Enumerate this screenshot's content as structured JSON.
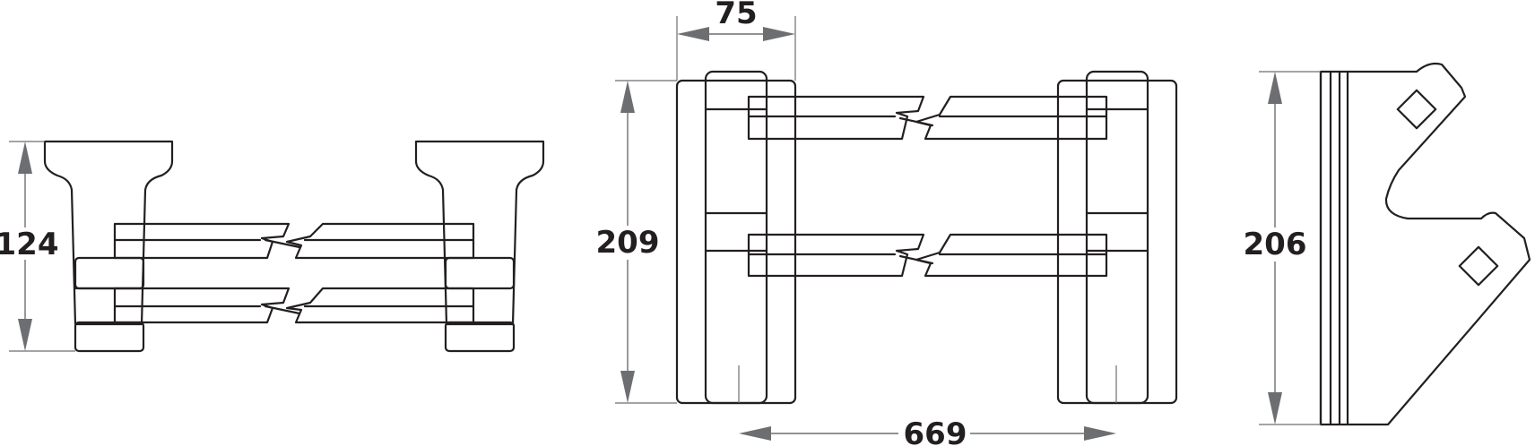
{
  "dimensions": {
    "side_height": "124",
    "front_height": "209",
    "bar_width": "75",
    "centre_spacing": "669",
    "bracket_height": "206"
  }
}
